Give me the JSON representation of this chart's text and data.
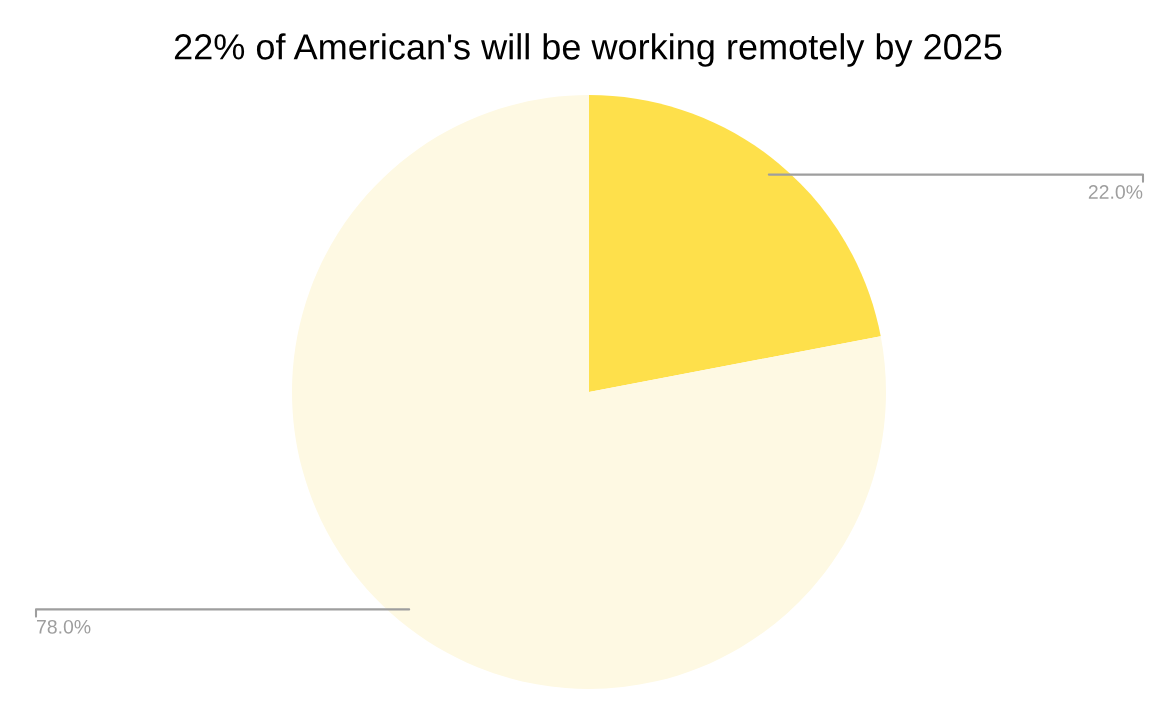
{
  "chart_data": {
    "type": "pie",
    "title": "22% of American's will be working remotely by 2025",
    "categories": [
      null,
      null
    ],
    "values": [
      22,
      78
    ],
    "colors": [
      "#fee04b",
      "#fef9e3"
    ],
    "value_labels": [
      "22.0%",
      "78.0%"
    ],
    "legend": false
  }
}
